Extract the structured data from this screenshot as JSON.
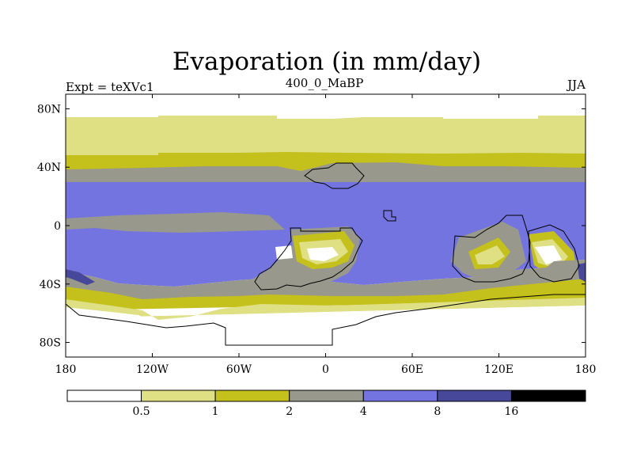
{
  "title": "Evaporation (in mm/day)",
  "left_label": "Expt = teXVc1",
  "center_label": "400_0_MaBP",
  "right_label": "JJA",
  "colors": {
    "lt_0_5": "#ffffff",
    "c_0_5_1": "#dfdf84",
    "c_1_2": "#c4c01c",
    "c_2_4": "#98988c",
    "c_4_8": "#7474e0",
    "c_8_16": "#48489a",
    "gt_16": "#000000",
    "outline": "#000000"
  },
  "lat_ticks": [
    {
      "value": 80,
      "label": "80N"
    },
    {
      "value": 40,
      "label": "40N"
    },
    {
      "value": 0,
      "label": "0"
    },
    {
      "value": -40,
      "label": "40S"
    },
    {
      "value": -80,
      "label": "80S"
    }
  ],
  "lon_ticks": [
    {
      "value": -180,
      "label": "180"
    },
    {
      "value": -120,
      "label": "120W"
    },
    {
      "value": -60,
      "label": "60W"
    },
    {
      "value": 0,
      "label": "0"
    },
    {
      "value": 60,
      "label": "60E"
    },
    {
      "value": 120,
      "label": "120E"
    },
    {
      "value": 180,
      "label": "180"
    }
  ],
  "colorbar": {
    "colors": [
      "#ffffff",
      "#dfdf84",
      "#c4c01c",
      "#98988c",
      "#7474e0",
      "#48489a",
      "#000000"
    ],
    "labels": [
      "0.5",
      "1",
      "2",
      "4",
      "8",
      "16"
    ]
  },
  "map_data": {
    "projection": "cylindrical-equidistant",
    "lon_range": [
      -180,
      180
    ],
    "lat_range": [
      -90,
      90
    ],
    "variable": "evaporation",
    "units": "mm/day",
    "bands": [
      {
        "range": "0.5-1",
        "color": "#dfdf84",
        "from_lat": 76,
        "to_lat": 50
      },
      {
        "range": "1-2",
        "color": "#c4c01c",
        "from_lat": 50,
        "to_lat": 42
      },
      {
        "range": "2-4",
        "color": "#98988c",
        "from_lat": 42,
        "to_lat": 30
      },
      {
        "range": "4-8",
        "color": "#7474e0",
        "from_lat": 30,
        "to_lat": -34
      },
      {
        "range": "2-4",
        "color": "#98988c",
        "from_lat": -34,
        "to_lat": -50
      },
      {
        "range": "1-2",
        "color": "#c4c01c",
        "from_lat": -50,
        "to_lat": -56
      },
      {
        "range": "0.5-1",
        "color": "#dfdf84",
        "from_lat": -56,
        "to_lat": -62
      }
    ]
  }
}
